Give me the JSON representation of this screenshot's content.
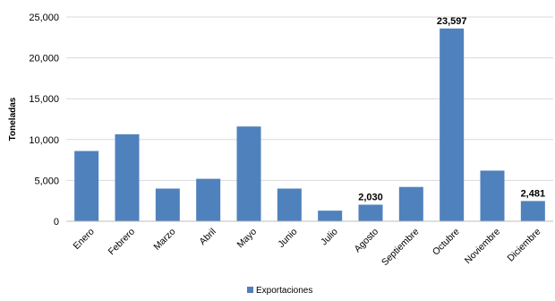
{
  "chart_data": {
    "type": "bar",
    "title": "",
    "xlabel": "",
    "ylabel": "Toneladas",
    "ylim": [
      0,
      25000
    ],
    "yticks": [
      0,
      5000,
      10000,
      15000,
      20000,
      25000
    ],
    "ytick_labels": [
      "0",
      "5,000",
      "10,000",
      "15,000",
      "20,000",
      "25,000"
    ],
    "grid": "horizontal",
    "legend_position": "bottom",
    "categories": [
      "Enero",
      "Febrero",
      "Marzo",
      "Abril",
      "Mayo",
      "Junio",
      "Julio",
      "Agosto",
      "Septiembre",
      "Octubre",
      "Noviembre",
      "Diciembre"
    ],
    "series": [
      {
        "name": "Exportaciones",
        "color": "#4F81BD",
        "values": [
          8600,
          10650,
          4000,
          5200,
          11600,
          4000,
          1300,
          2030,
          4200,
          23597,
          6200,
          2481
        ]
      }
    ],
    "data_labels": [
      {
        "category": "Agosto",
        "text": "2,030"
      },
      {
        "category": "Octubre",
        "text": "23,597"
      },
      {
        "category": "Diciembre",
        "text": "2,481"
      }
    ]
  }
}
